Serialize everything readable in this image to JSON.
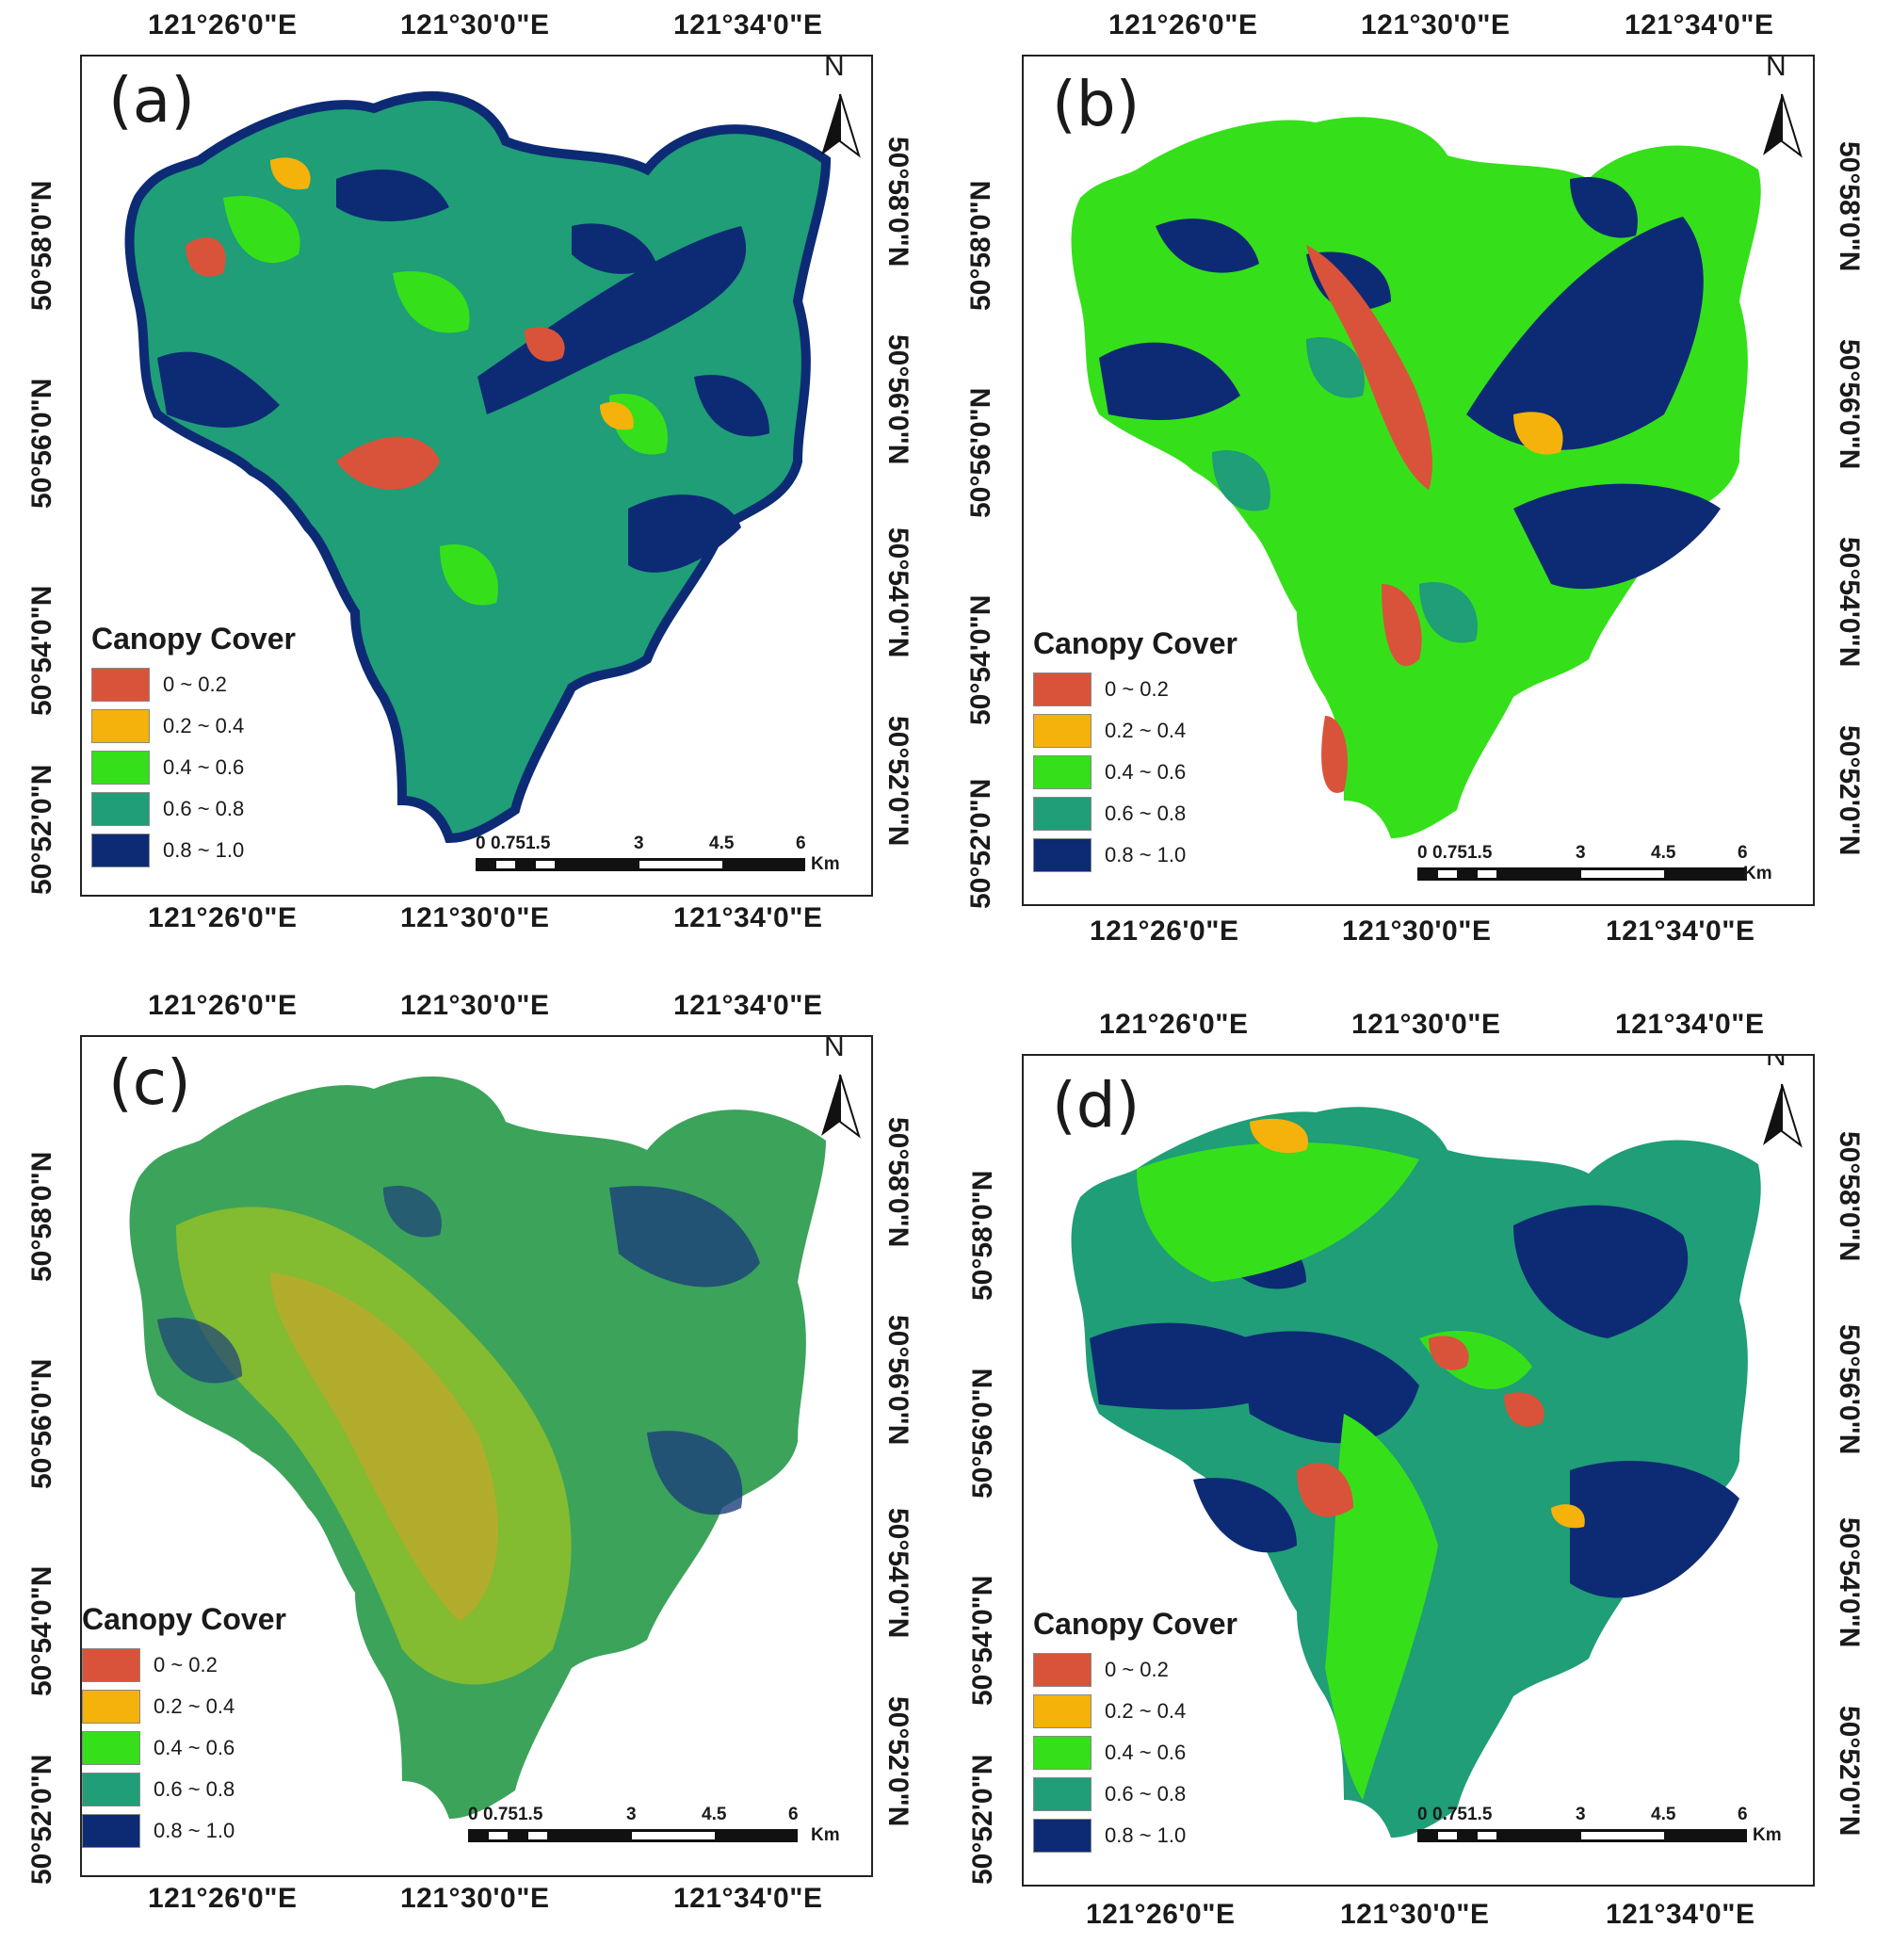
{
  "legend": {
    "title": "Canopy Cover",
    "classes": [
      {
        "label": "0 ~ 0.2",
        "color": "#d9533a"
      },
      {
        "label": "0.2 ~ 0.4",
        "color": "#f5b20a"
      },
      {
        "label": "0.4 ~ 0.6",
        "color": "#35e01a"
      },
      {
        "label": "0.6 ~ 0.8",
        "color": "#1f9e77"
      },
      {
        "label": "0.8 ~ 1.0",
        "color": "#0d2a75"
      }
    ]
  },
  "axes": {
    "lon_ticks": [
      "121°26'0\"E",
      "121°30'0\"E",
      "121°34'0\"E"
    ],
    "lat_ticks": [
      "50°52'0\"N",
      "50°54'0\"N",
      "50°56'0\"N",
      "50°58'0\"N"
    ]
  },
  "north_label": "N",
  "scale": {
    "ticks": [
      "0",
      "0.751.5",
      "3",
      "4.5",
      "6"
    ],
    "unit": "Km"
  },
  "panels": [
    {
      "label": "(a)",
      "border": true
    },
    {
      "label": "(b)",
      "border": false
    },
    {
      "label": "(c)",
      "border": false
    },
    {
      "label": "(d)",
      "border": false
    }
  ]
}
